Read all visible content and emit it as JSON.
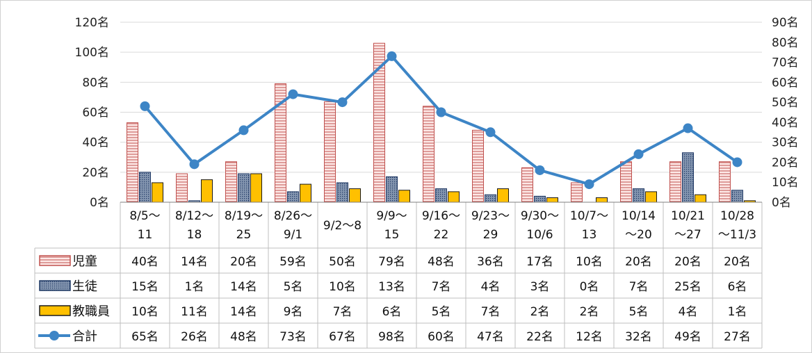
{
  "chart_data": {
    "type": "bar",
    "categories": [
      [
        "8/5～",
        "11"
      ],
      [
        "8/12～",
        "18"
      ],
      [
        "8/19～",
        "25"
      ],
      [
        "8/26～",
        "9/1"
      ],
      [
        "9/2～8"
      ],
      [
        "9/9～",
        "15"
      ],
      [
        "9/16～",
        "22"
      ],
      [
        "9/23～",
        "29"
      ],
      [
        "9/30～",
        "10/6"
      ],
      [
        "10/7～",
        "13"
      ],
      [
        "10/14",
        "～20"
      ],
      [
        "10/21",
        "～27"
      ],
      [
        "10/28",
        "～11/3"
      ]
    ],
    "series": [
      {
        "name": "児童",
        "kind": "bar",
        "axis": "left",
        "pattern": "hatch",
        "color": "#c0504d",
        "fill": "#fde9e7",
        "values": [
          53,
          19,
          27,
          79,
          67,
          106,
          64,
          48,
          23,
          13,
          27,
          27,
          27
        ],
        "labels": [
          "40名",
          "14名",
          "20名",
          "59名",
          "50名",
          "79名",
          "48名",
          "36名",
          "17名",
          "10名",
          "20名",
          "20名",
          "20名"
        ]
      },
      {
        "name": "生徒",
        "kind": "bar",
        "axis": "left",
        "pattern": "dots",
        "color": "#1f3864",
        "fill": "#8496b0",
        "values": [
          20,
          1,
          19,
          7,
          13,
          17,
          9,
          5,
          4,
          0,
          9,
          33,
          8
        ],
        "labels": [
          "15名",
          "1名",
          "14名",
          "5名",
          "10名",
          "13名",
          "7名",
          "4名",
          "3名",
          "0名",
          "7名",
          "25名",
          "6名"
        ]
      },
      {
        "name": "教職員",
        "kind": "bar",
        "axis": "left",
        "pattern": "solid",
        "color": "#1a1a1a",
        "fill": "#ffc000",
        "values": [
          13,
          15,
          19,
          12,
          9,
          8,
          7,
          9,
          3,
          3,
          7,
          5,
          1
        ],
        "labels": [
          "10名",
          "11名",
          "14名",
          "9名",
          "7名",
          "6名",
          "5名",
          "7名",
          "2名",
          "2名",
          "5名",
          "4名",
          "1名"
        ]
      },
      {
        "name": "合計",
        "kind": "line",
        "axis": "right",
        "color": "#3d85c6",
        "values": [
          48,
          19,
          36,
          54,
          50,
          73,
          45,
          35,
          16,
          9,
          24,
          37,
          20
        ],
        "labels": [
          "65名",
          "26名",
          "48名",
          "73名",
          "67名",
          "98名",
          "60名",
          "47名",
          "22名",
          "12名",
          "32名",
          "49名",
          "27名"
        ]
      }
    ],
    "y_left": {
      "min": 0,
      "max": 120,
      "ticks": [
        "0名",
        "20名",
        "40名",
        "60名",
        "80名",
        "100名",
        "120名"
      ],
      "tick_values": [
        0,
        20,
        40,
        60,
        80,
        100,
        120
      ]
    },
    "y_right": {
      "min": 0,
      "max": 90,
      "ticks": [
        "0名",
        "10名",
        "20名",
        "30名",
        "40名",
        "50名",
        "60名",
        "70名",
        "80名",
        "90名"
      ],
      "tick_values": [
        0,
        10,
        20,
        30,
        40,
        50,
        60,
        70,
        80,
        90
      ]
    },
    "grid": "horizontal",
    "data_table": true,
    "title": "",
    "xlabel": "",
    "ylabel": ""
  }
}
